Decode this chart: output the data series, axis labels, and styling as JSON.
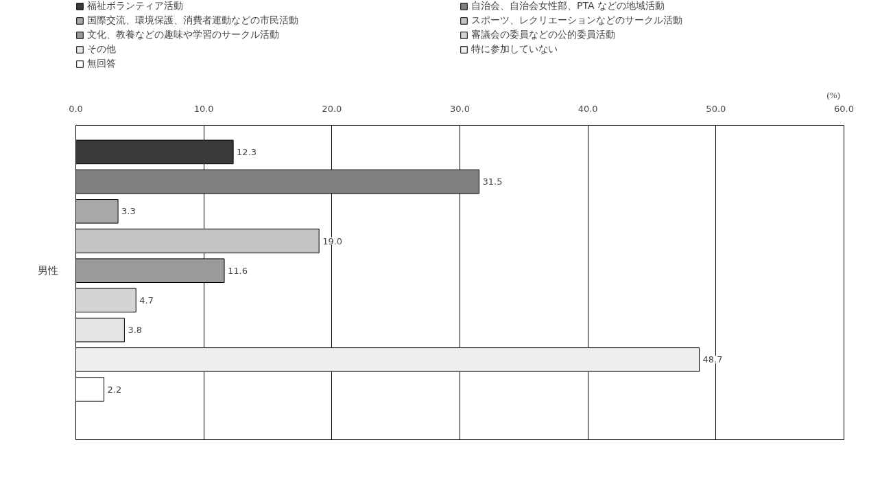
{
  "chart_data": {
    "type": "bar",
    "orientation": "horizontal",
    "categories": [
      "男性"
    ],
    "xlabel": "(%)",
    "xlim": [
      0,
      60
    ],
    "xticks": [
      {
        "value": 0,
        "label": "0.0"
      },
      {
        "value": 10,
        "label": "10.0"
      },
      {
        "value": 20,
        "label": "20.0"
      },
      {
        "value": 30,
        "label": "30.0"
      },
      {
        "value": 40,
        "label": "40.0"
      },
      {
        "value": 50,
        "label": "50.0"
      },
      {
        "value": 60,
        "label": "60.0"
      }
    ],
    "grid": "x",
    "legend": "top",
    "series": [
      {
        "name": "福祉ボランティア活動",
        "color": "#3a3a3a",
        "values": [
          12.3
        ],
        "value_labels": [
          "12.3"
        ]
      },
      {
        "name": "自治会、自治会女性部、PTA などの地域活動",
        "color": "#7f7f7f",
        "values": [
          31.5
        ],
        "value_labels": [
          "31.5"
        ]
      },
      {
        "name": "国際交流、環境保護、消費者運動などの市民活動",
        "color": "#a8a8a8",
        "values": [
          3.3
        ],
        "value_labels": [
          "3.3"
        ]
      },
      {
        "name": "スポーツ、レクリエーションなどのサークル活動",
        "color": "#c4c4c4",
        "values": [
          19.0
        ],
        "value_labels": [
          "19.0"
        ]
      },
      {
        "name": "文化、教養などの趣味や学習のサークル活動",
        "color": "#9a9a9a",
        "values": [
          11.6
        ],
        "value_labels": [
          "11.6"
        ]
      },
      {
        "name": "審議会の委員などの公的委員活動",
        "color": "#d4d4d4",
        "values": [
          4.7
        ],
        "value_labels": [
          "4.7"
        ]
      },
      {
        "name": "その他",
        "color": "#e4e4e4",
        "values": [
          3.8
        ],
        "value_labels": [
          "3.8"
        ]
      },
      {
        "name": "特に参加していない",
        "color": "#eeeeee",
        "values": [
          48.7
        ],
        "value_labels": [
          "48.7"
        ]
      },
      {
        "name": "無回答",
        "color": "#ffffff",
        "values": [
          2.2
        ],
        "value_labels": [
          "2.2"
        ]
      }
    ]
  }
}
